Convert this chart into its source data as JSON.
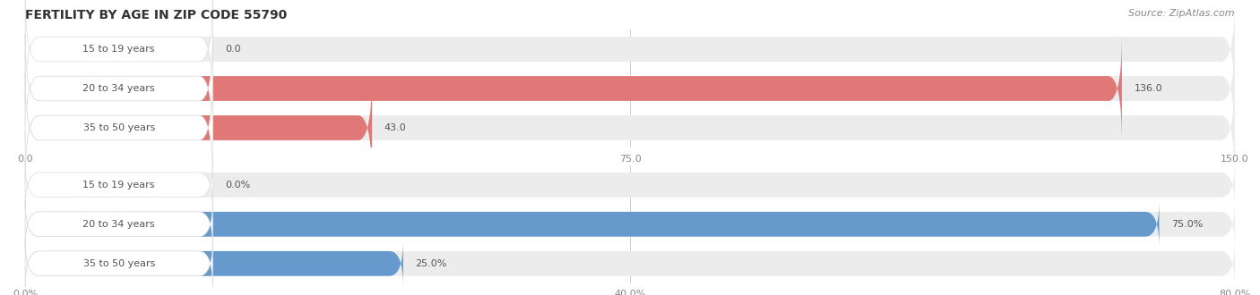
{
  "title": "FERTILITY BY AGE IN ZIP CODE 55790",
  "source": "Source: ZipAtlas.com",
  "top_chart": {
    "categories": [
      "15 to 19 years",
      "20 to 34 years",
      "35 to 50 years"
    ],
    "values": [
      0.0,
      136.0,
      43.0
    ],
    "xlim": [
      0,
      150.0
    ],
    "xticks": [
      0.0,
      75.0,
      150.0
    ],
    "xtick_labels": [
      "0.0",
      "75.0",
      "150.0"
    ],
    "bar_color": "#E07878",
    "bg_color": "#ECECEC",
    "label_color": "#555555"
  },
  "bottom_chart": {
    "categories": [
      "15 to 19 years",
      "20 to 34 years",
      "35 to 50 years"
    ],
    "values": [
      0.0,
      75.0,
      25.0
    ],
    "xlim": [
      0,
      80.0
    ],
    "xticks": [
      0.0,
      40.0,
      80.0
    ],
    "xtick_labels": [
      "0.0%",
      "40.0%",
      "80.0%"
    ],
    "bar_color": "#6699CC",
    "bg_color": "#ECECEC",
    "label_color": "#555555"
  },
  "fig_bg": "#FFFFFF",
  "title_fontsize": 10,
  "source_fontsize": 8,
  "label_fontsize": 8,
  "value_fontsize": 8,
  "tick_fontsize": 8
}
